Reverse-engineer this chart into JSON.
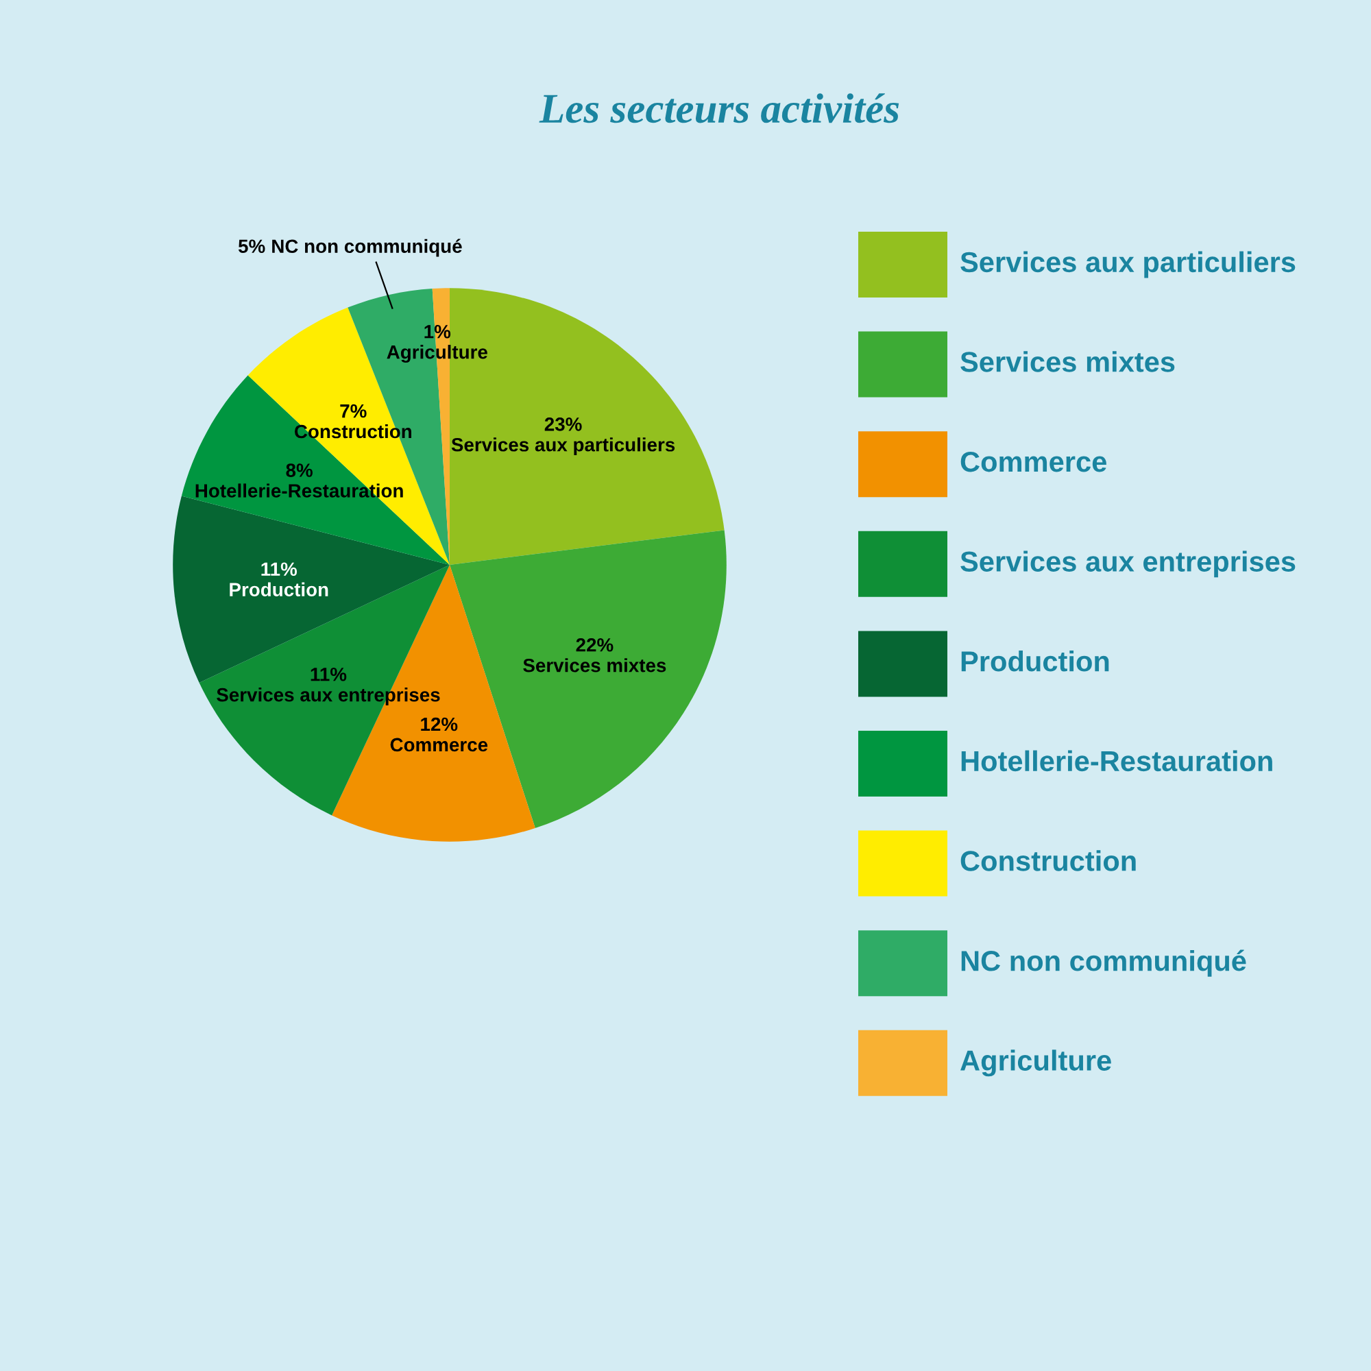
{
  "chart_data": {
    "type": "pie",
    "title": "Les secteurs activités",
    "categories": [
      "Services aux particuliers",
      "Services mixtes",
      "Commerce",
      "Services aux entreprises",
      "Production",
      "Hotellerie-Restauration",
      "Construction",
      "NC non communiqué",
      "Agriculture"
    ],
    "values": [
      23,
      22,
      12,
      11,
      11,
      8,
      7,
      5,
      1
    ],
    "value_labels": [
      "23%",
      "22%",
      "12%",
      "11%",
      "11%",
      "8%",
      "7%",
      "5%",
      "1%"
    ],
    "colors": [
      "#93c01f",
      "#3dab35",
      "#f29100",
      "#0f8f36",
      "#066633",
      "#009640",
      "#ffed00",
      "#2fac66",
      "#f8b133"
    ],
    "legend": "right"
  }
}
